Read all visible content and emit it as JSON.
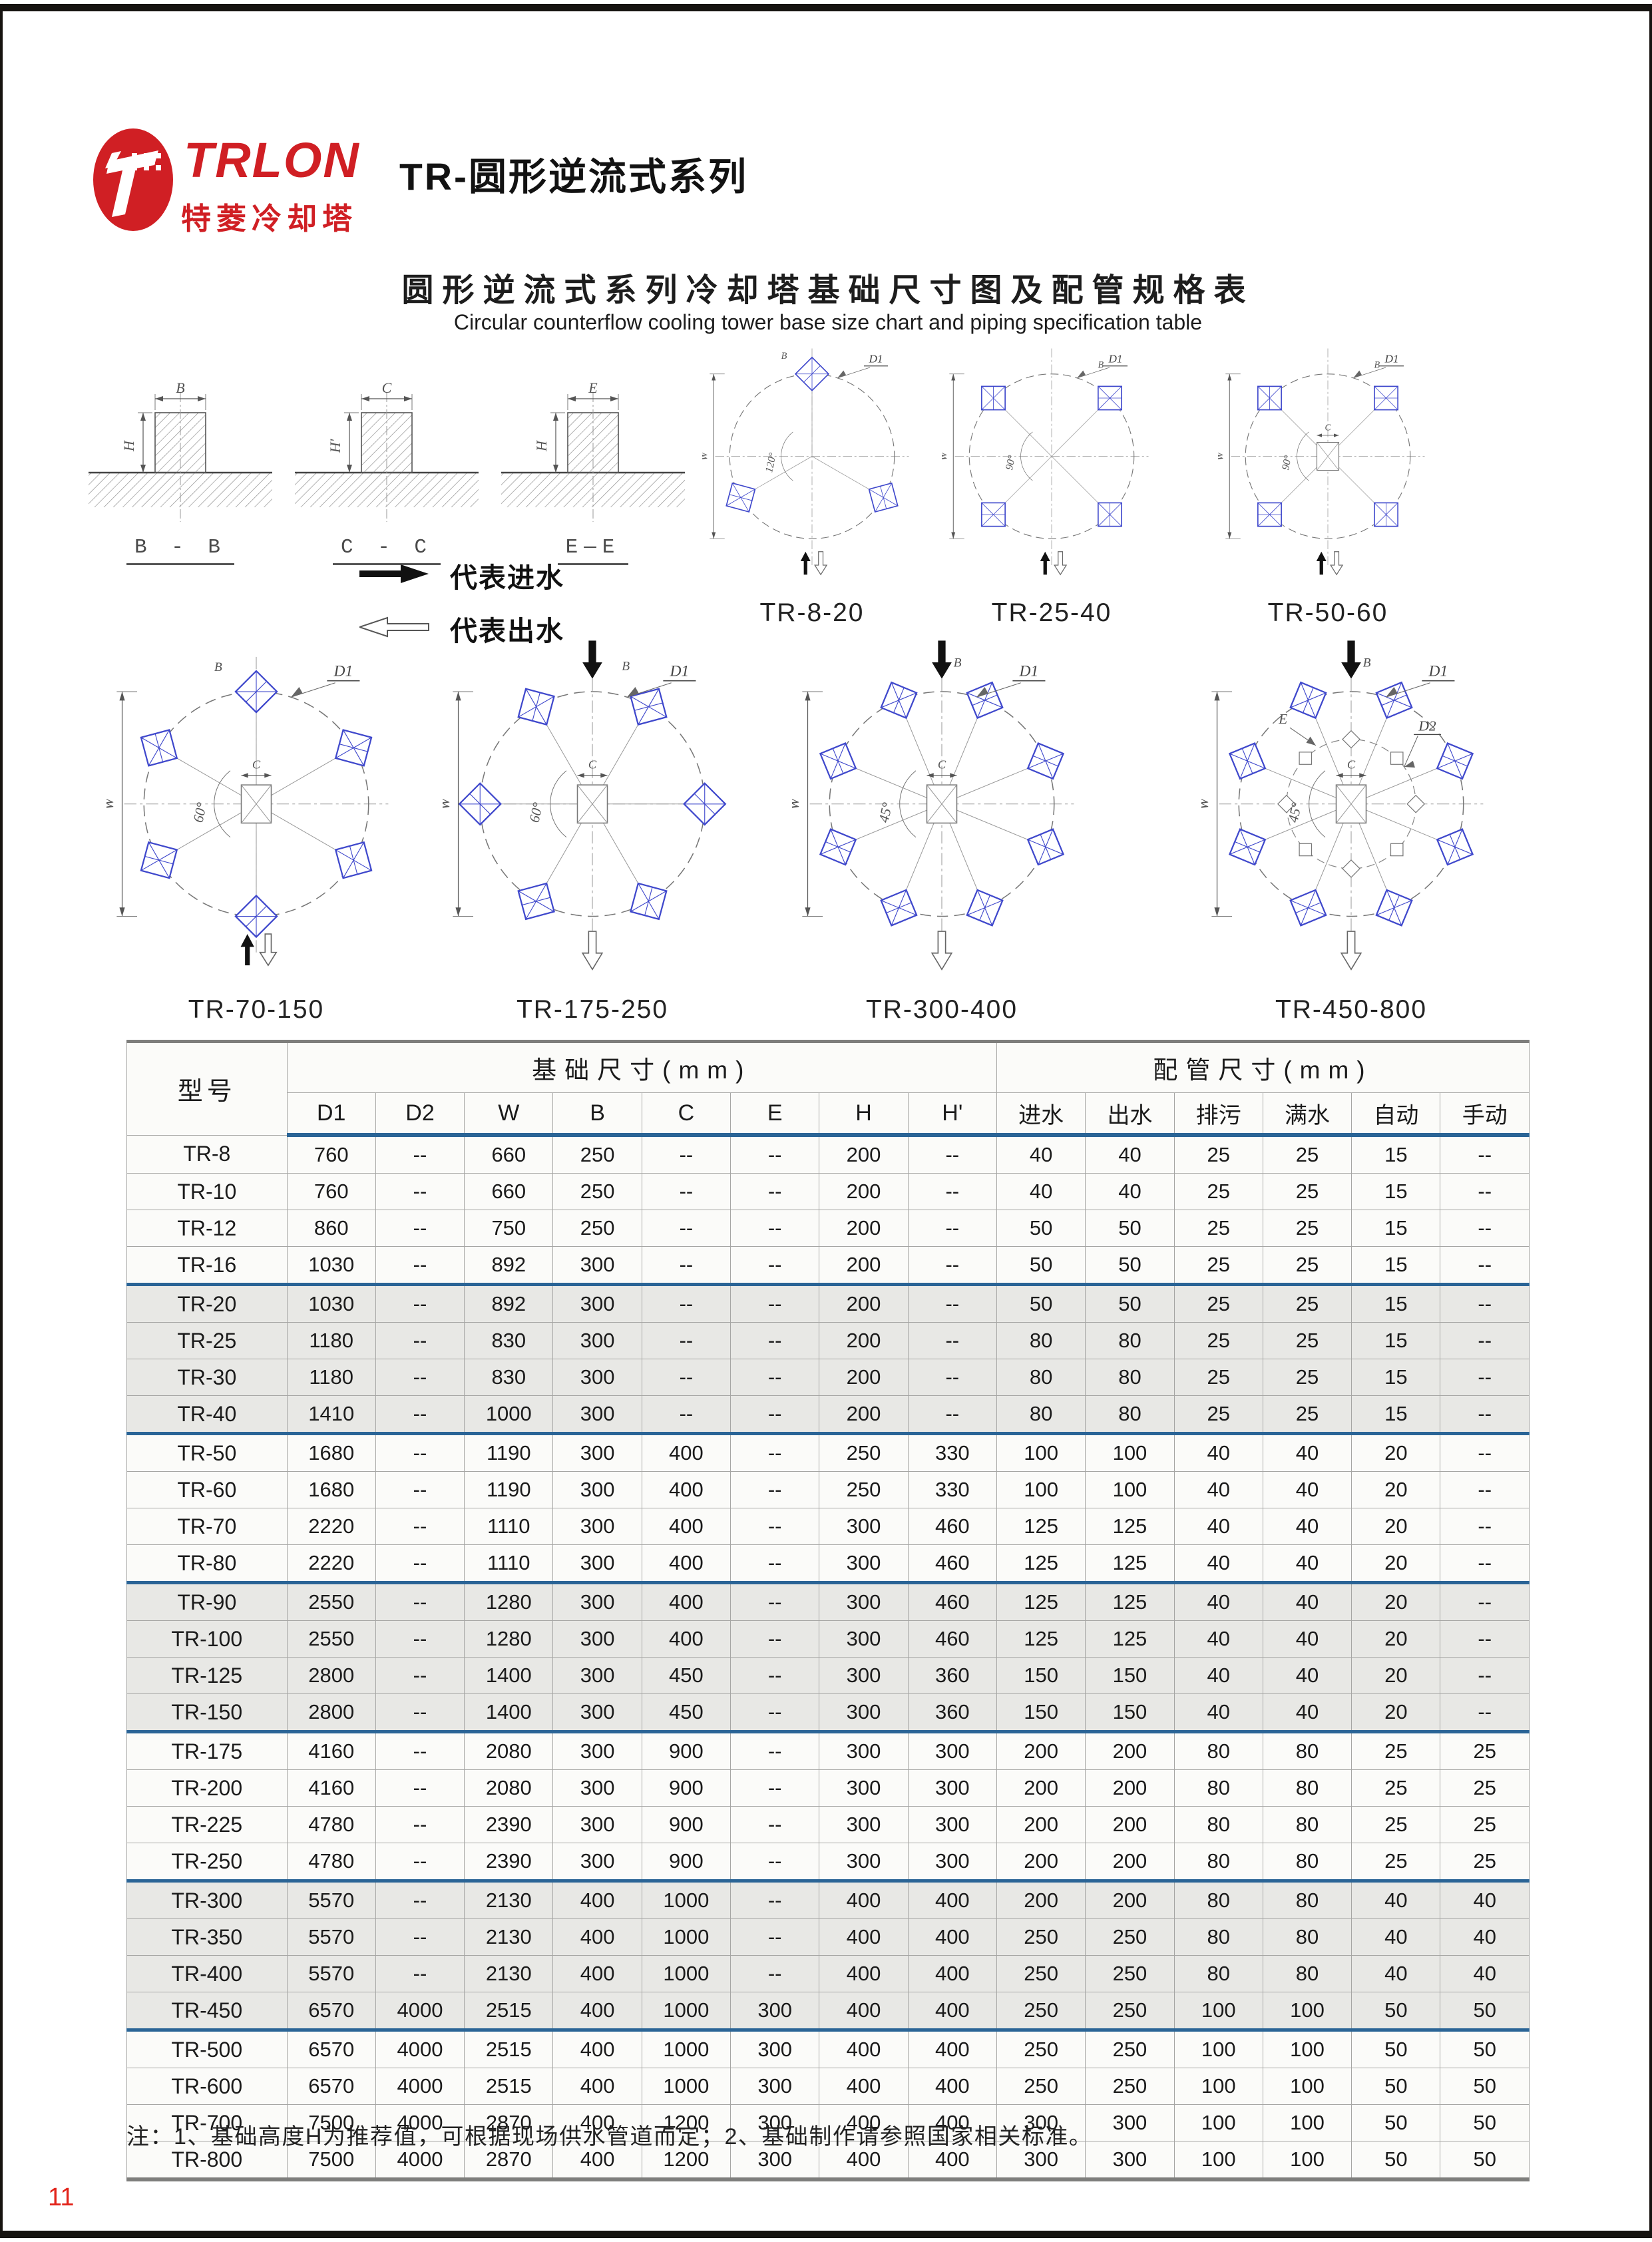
{
  "colors": {
    "accent_red": "#d01f24",
    "separator_blue": "#2a6496",
    "block_blue": "#3f48cc"
  },
  "header": {
    "logo_text": "TRLON",
    "logo_subtext": "特菱冷却塔",
    "series_title": "TR-圆形逆流式系列"
  },
  "section": {
    "title": "圆形逆流式系列冷却塔基础尺寸图及配管规格表",
    "subtitle": "Circular counterflow cooling tower base size chart and piping specification table"
  },
  "legend": {
    "inlet_label": "代表进水",
    "outlet_label": "代表出水"
  },
  "section_diagrams": [
    {
      "label": "B - B",
      "top": "B",
      "side": "H"
    },
    {
      "label": "C - C",
      "top": "C",
      "side": "H'"
    },
    {
      "label": "E—E",
      "top": "E",
      "side": "H"
    }
  ],
  "plan_diagrams": [
    {
      "label": "TR-8-20",
      "blocks": 3,
      "start_angle": 90,
      "step": 120,
      "angle_label": "120°",
      "labels": {
        "d1": "D1",
        "w": "W",
        "b": "B"
      },
      "center_square": false,
      "inner_circle": false,
      "arrows": "bottom-pair"
    },
    {
      "label": "TR-25-40",
      "blocks": 4,
      "start_angle": 45,
      "step": 90,
      "angle_label": "90°",
      "labels": {
        "d1": "D1",
        "w": "W",
        "b": "B"
      },
      "center_square": false,
      "inner_circle": false,
      "arrows": "bottom-pair"
    },
    {
      "label": "TR-50-60",
      "blocks": 4,
      "start_angle": 45,
      "step": 90,
      "angle_label": "90°",
      "labels": {
        "d1": "D1",
        "w": "W",
        "b": "B",
        "c": "C"
      },
      "center_square": true,
      "inner_circle": false,
      "arrows": "bottom-pair"
    },
    {
      "label": "TR-70-150",
      "blocks": 6,
      "start_angle": 90,
      "step": 60,
      "angle_label": "60°",
      "labels": {
        "d1": "D1",
        "w": "W",
        "b": "B",
        "c": "C"
      },
      "center_square": true,
      "inner_circle": false,
      "arrows": "bottom-pair"
    },
    {
      "label": "TR-175-250",
      "blocks": 6,
      "start_angle": 60,
      "step": 60,
      "angle_label": "60°",
      "labels": {
        "d1": "D1",
        "w": "W",
        "b": "B",
        "c": "C"
      },
      "center_square": true,
      "inner_circle": false,
      "arrows": "top-bottom"
    },
    {
      "label": "TR-300-400",
      "blocks": 8,
      "start_angle": 22.5,
      "step": 45,
      "angle_label": "45°",
      "labels": {
        "d1": "D1",
        "w": "W",
        "b": "B",
        "c": "C"
      },
      "center_square": true,
      "inner_circle": false,
      "arrows": "top-bottom"
    },
    {
      "label": "TR-450-800",
      "blocks": 8,
      "start_angle": 22.5,
      "step": 45,
      "angle_label": "45°",
      "labels": {
        "d1": "D1",
        "d2": "D2",
        "w": "W",
        "b": "B",
        "c": "C",
        "e": "E"
      },
      "center_square": true,
      "inner_circle": true,
      "arrows": "top-bottom"
    }
  ],
  "table": {
    "model_header": "型号",
    "groups": [
      {
        "label": "基础尺寸(mm)",
        "span": 8
      },
      {
        "label": "配管尺寸(mm)",
        "span": 6
      }
    ],
    "columns": [
      "D1",
      "D2",
      "W",
      "B",
      "C",
      "E",
      "H",
      "H'",
      "进水",
      "出水",
      "排污",
      "满水",
      "自动",
      "手动"
    ],
    "rows": [
      [
        "TR-8",
        "760",
        "--",
        "660",
        "250",
        "--",
        "--",
        "200",
        "--",
        "40",
        "40",
        "25",
        "25",
        "15",
        "--"
      ],
      [
        "TR-10",
        "760",
        "--",
        "660",
        "250",
        "--",
        "--",
        "200",
        "--",
        "40",
        "40",
        "25",
        "25",
        "15",
        "--"
      ],
      [
        "TR-12",
        "860",
        "--",
        "750",
        "250",
        "--",
        "--",
        "200",
        "--",
        "50",
        "50",
        "25",
        "25",
        "15",
        "--"
      ],
      [
        "TR-16",
        "1030",
        "--",
        "892",
        "300",
        "--",
        "--",
        "200",
        "--",
        "50",
        "50",
        "25",
        "25",
        "15",
        "--"
      ],
      [
        "TR-20",
        "1030",
        "--",
        "892",
        "300",
        "--",
        "--",
        "200",
        "--",
        "50",
        "50",
        "25",
        "25",
        "15",
        "--"
      ],
      [
        "TR-25",
        "1180",
        "--",
        "830",
        "300",
        "--",
        "--",
        "200",
        "--",
        "80",
        "80",
        "25",
        "25",
        "15",
        "--"
      ],
      [
        "TR-30",
        "1180",
        "--",
        "830",
        "300",
        "--",
        "--",
        "200",
        "--",
        "80",
        "80",
        "25",
        "25",
        "15",
        "--"
      ],
      [
        "TR-40",
        "1410",
        "--",
        "1000",
        "300",
        "--",
        "--",
        "200",
        "--",
        "80",
        "80",
        "25",
        "25",
        "15",
        "--"
      ],
      [
        "TR-50",
        "1680",
        "--",
        "1190",
        "300",
        "400",
        "--",
        "250",
        "330",
        "100",
        "100",
        "40",
        "40",
        "20",
        "--"
      ],
      [
        "TR-60",
        "1680",
        "--",
        "1190",
        "300",
        "400",
        "--",
        "250",
        "330",
        "100",
        "100",
        "40",
        "40",
        "20",
        "--"
      ],
      [
        "TR-70",
        "2220",
        "--",
        "1110",
        "300",
        "400",
        "--",
        "300",
        "460",
        "125",
        "125",
        "40",
        "40",
        "20",
        "--"
      ],
      [
        "TR-80",
        "2220",
        "--",
        "1110",
        "300",
        "400",
        "--",
        "300",
        "460",
        "125",
        "125",
        "40",
        "40",
        "20",
        "--"
      ],
      [
        "TR-90",
        "2550",
        "--",
        "1280",
        "300",
        "400",
        "--",
        "300",
        "460",
        "125",
        "125",
        "40",
        "40",
        "20",
        "--"
      ],
      [
        "TR-100",
        "2550",
        "--",
        "1280",
        "300",
        "400",
        "--",
        "300",
        "460",
        "125",
        "125",
        "40",
        "40",
        "20",
        "--"
      ],
      [
        "TR-125",
        "2800",
        "--",
        "1400",
        "300",
        "450",
        "--",
        "300",
        "360",
        "150",
        "150",
        "40",
        "40",
        "20",
        "--"
      ],
      [
        "TR-150",
        "2800",
        "--",
        "1400",
        "300",
        "450",
        "--",
        "300",
        "360",
        "150",
        "150",
        "40",
        "40",
        "20",
        "--"
      ],
      [
        "TR-175",
        "4160",
        "--",
        "2080",
        "300",
        "900",
        "--",
        "300",
        "300",
        "200",
        "200",
        "80",
        "80",
        "25",
        "25"
      ],
      [
        "TR-200",
        "4160",
        "--",
        "2080",
        "300",
        "900",
        "--",
        "300",
        "300",
        "200",
        "200",
        "80",
        "80",
        "25",
        "25"
      ],
      [
        "TR-225",
        "4780",
        "--",
        "2390",
        "300",
        "900",
        "--",
        "300",
        "300",
        "200",
        "200",
        "80",
        "80",
        "25",
        "25"
      ],
      [
        "TR-250",
        "4780",
        "--",
        "2390",
        "300",
        "900",
        "--",
        "300",
        "300",
        "200",
        "200",
        "80",
        "80",
        "25",
        "25"
      ],
      [
        "TR-300",
        "5570",
        "--",
        "2130",
        "400",
        "1000",
        "--",
        "400",
        "400",
        "200",
        "200",
        "80",
        "80",
        "40",
        "40"
      ],
      [
        "TR-350",
        "5570",
        "--",
        "2130",
        "400",
        "1000",
        "--",
        "400",
        "400",
        "250",
        "250",
        "80",
        "80",
        "40",
        "40"
      ],
      [
        "TR-400",
        "5570",
        "--",
        "2130",
        "400",
        "1000",
        "--",
        "400",
        "400",
        "250",
        "250",
        "80",
        "80",
        "40",
        "40"
      ],
      [
        "TR-450",
        "6570",
        "4000",
        "2515",
        "400",
        "1000",
        "300",
        "400",
        "400",
        "250",
        "250",
        "100",
        "100",
        "50",
        "50"
      ],
      [
        "TR-500",
        "6570",
        "4000",
        "2515",
        "400",
        "1000",
        "300",
        "400",
        "400",
        "250",
        "250",
        "100",
        "100",
        "50",
        "50"
      ],
      [
        "TR-600",
        "6570",
        "4000",
        "2515",
        "400",
        "1000",
        "300",
        "400",
        "400",
        "250",
        "250",
        "100",
        "100",
        "50",
        "50"
      ],
      [
        "TR-700",
        "7500",
        "4000",
        "2870",
        "400",
        "1200",
        "300",
        "400",
        "400",
        "300",
        "300",
        "100",
        "100",
        "50",
        "50"
      ],
      [
        "TR-800",
        "7500",
        "4000",
        "2870",
        "400",
        "1200",
        "300",
        "400",
        "400",
        "300",
        "300",
        "100",
        "100",
        "50",
        "50"
      ]
    ]
  },
  "note": "注：1、基础高度H为推荐值，可根据现场供水管道而定；2、基础制作请参照国家相关标准。",
  "page_number": "11"
}
